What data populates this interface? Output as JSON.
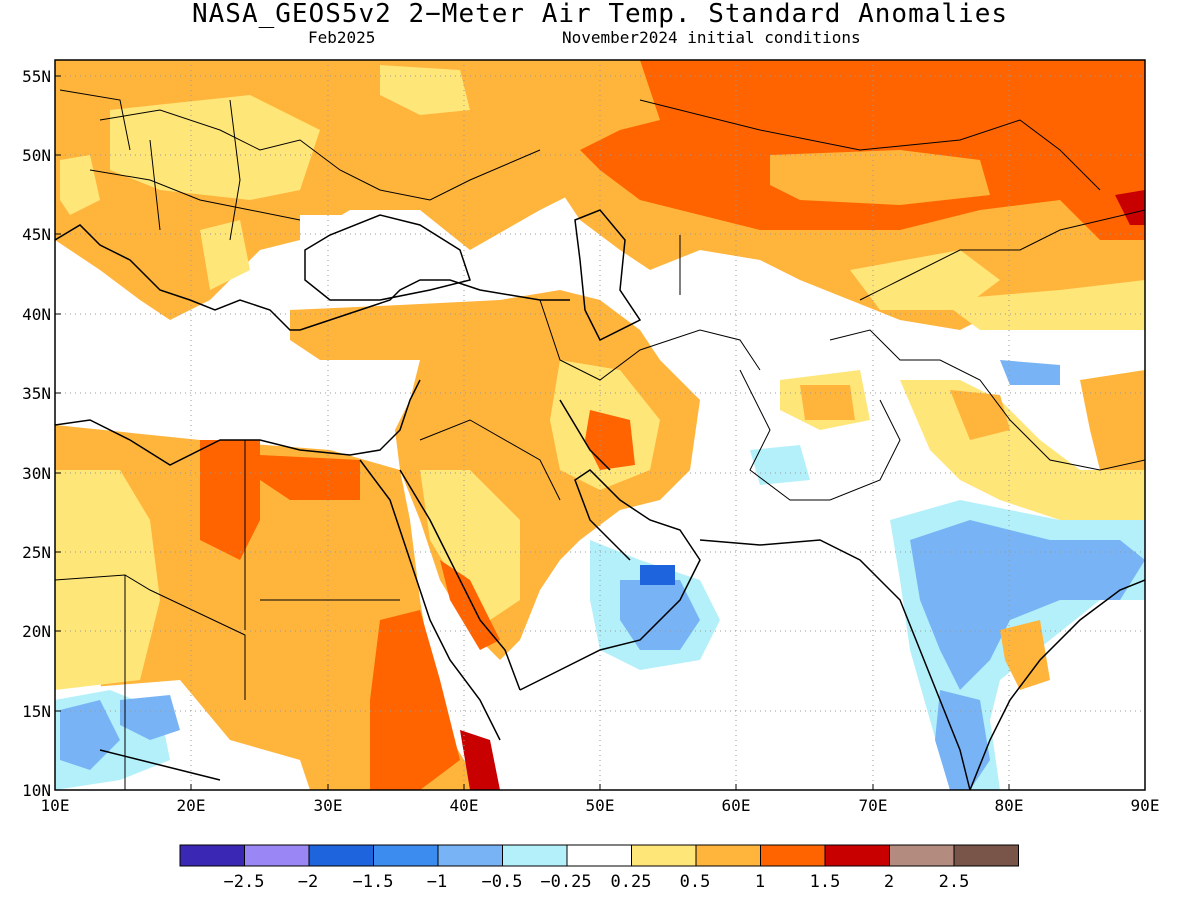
{
  "title": "NASA_GEOS5v2 2−Meter Air Temp. Standard Anomalies",
  "subtitle_left": "Feb2025",
  "subtitle_right": "November2024 initial conditions",
  "map": {
    "lon_range": [
      10,
      90
    ],
    "lat_range": [
      10,
      56
    ],
    "x_ticks": [
      "10E",
      "20E",
      "30E",
      "40E",
      "50E",
      "60E",
      "70E",
      "80E",
      "90E"
    ],
    "y_ticks": [
      "10N",
      "15N",
      "20N",
      "25N",
      "30N",
      "35N",
      "40N",
      "45N",
      "50N",
      "55N"
    ],
    "grid": "dotted"
  },
  "colorbar": {
    "colors": [
      "#3a28b4",
      "#9a87f5",
      "#1e64dc",
      "#3c8cf0",
      "#78b4f5",
      "#b4f0fa",
      "#ffffff",
      "#ffe678",
      "#ffb43c",
      "#ff6400",
      "#c80000",
      "#b48c7f",
      "#785548"
    ],
    "labels": [
      "−2.5",
      "−2",
      "−1.5",
      "−1",
      "−0.5",
      "−0.25",
      "0.25",
      "0.5",
      "1",
      "1.5",
      "2",
      "2.5"
    ]
  }
}
